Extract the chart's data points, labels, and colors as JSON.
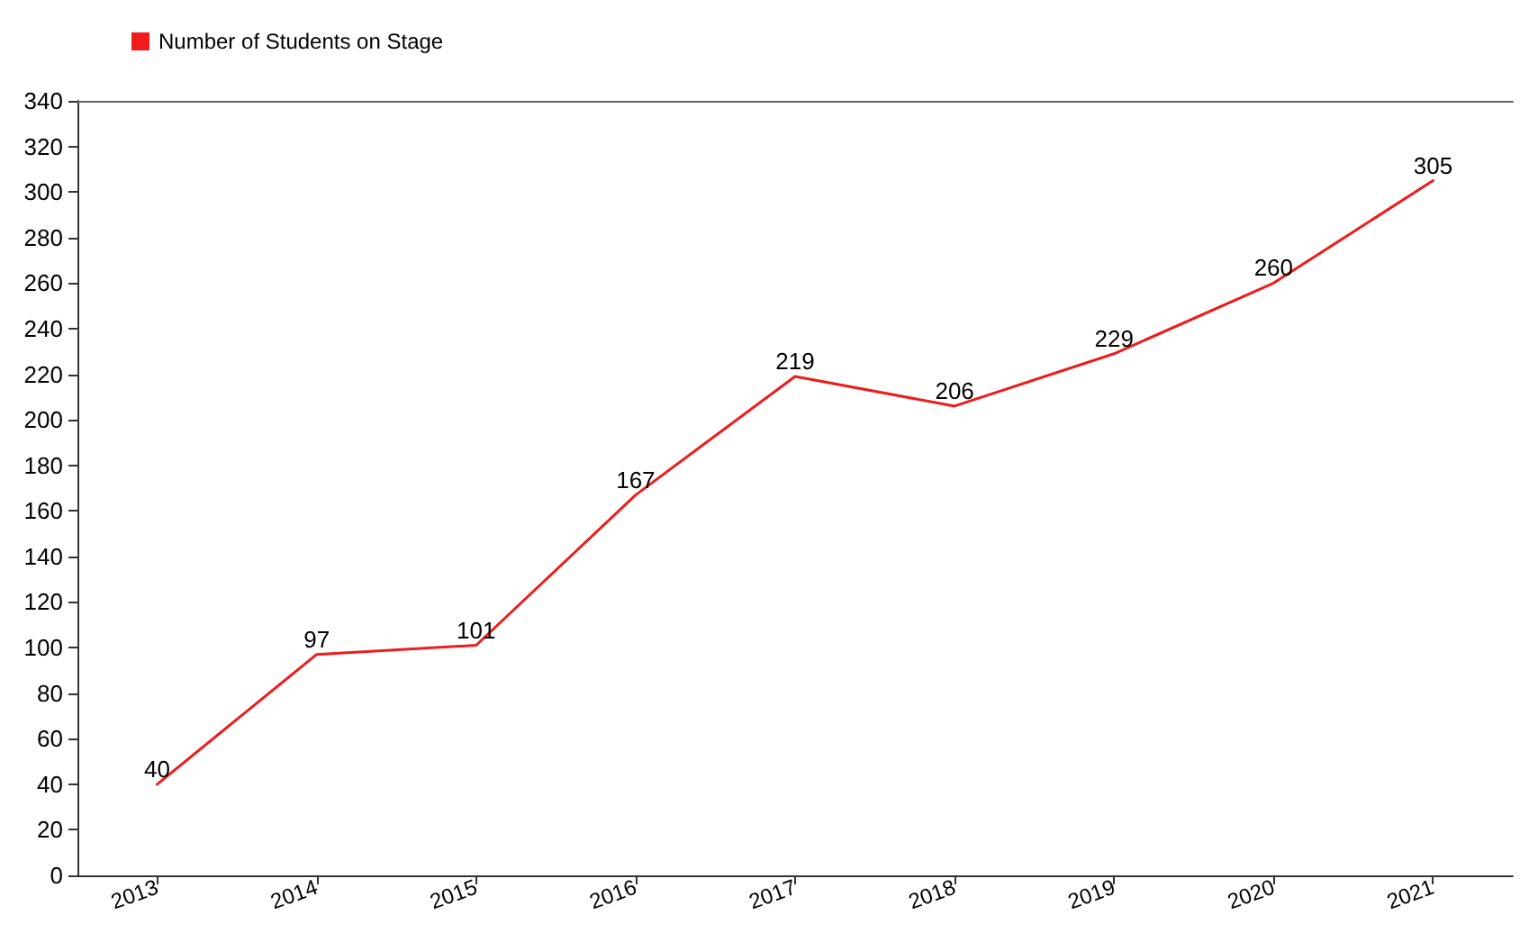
{
  "chart_data": {
    "type": "line",
    "categories": [
      "2013",
      "2014",
      "2015",
      "2016",
      "2017",
      "2018",
      "2019",
      "2020",
      "2021"
    ],
    "series": [
      {
        "name": "Number of Students on Stage",
        "color": "#ee1c1c",
        "values": [
          40,
          97,
          101,
          167,
          219,
          206,
          229,
          260,
          305
        ]
      }
    ],
    "ylim": [
      0,
      340
    ],
    "yticks": [
      0,
      20,
      40,
      60,
      80,
      100,
      120,
      140,
      160,
      180,
      200,
      220,
      240,
      260,
      280,
      300,
      320,
      340
    ],
    "grid": false,
    "legend": "top left",
    "marker": "none",
    "data_labels": true
  }
}
